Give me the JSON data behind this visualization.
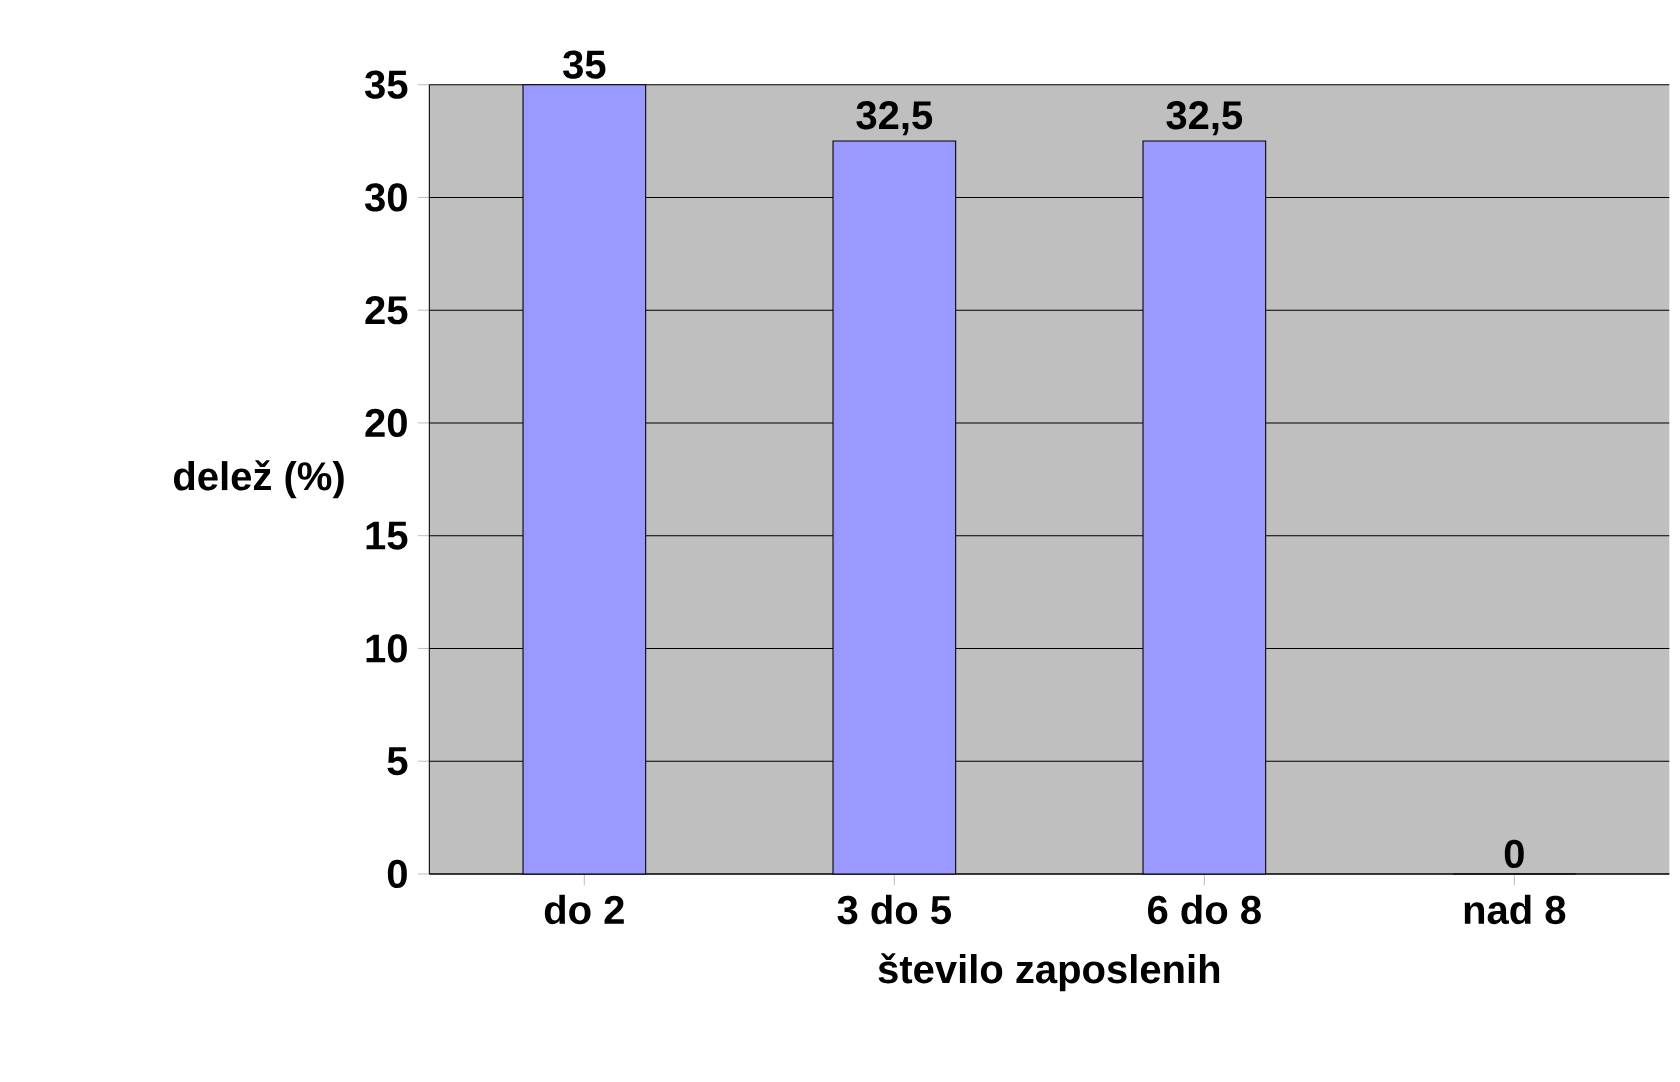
{
  "chart_data": {
    "type": "bar",
    "xlabel": "število zaposlenih",
    "ylabel": "delež (%)",
    "categories": [
      "do 2",
      "3 do 5",
      "6 do 8",
      "nad 8"
    ],
    "values": [
      35,
      32.5,
      32.5,
      0
    ],
    "value_labels": [
      "35",
      "32,5",
      "32,5",
      "0"
    ],
    "color": "#9999ff",
    "ylim": [
      0,
      35
    ],
    "yticks": [
      0,
      5,
      10,
      15,
      20,
      25,
      30,
      35
    ],
    "grid": "y"
  }
}
